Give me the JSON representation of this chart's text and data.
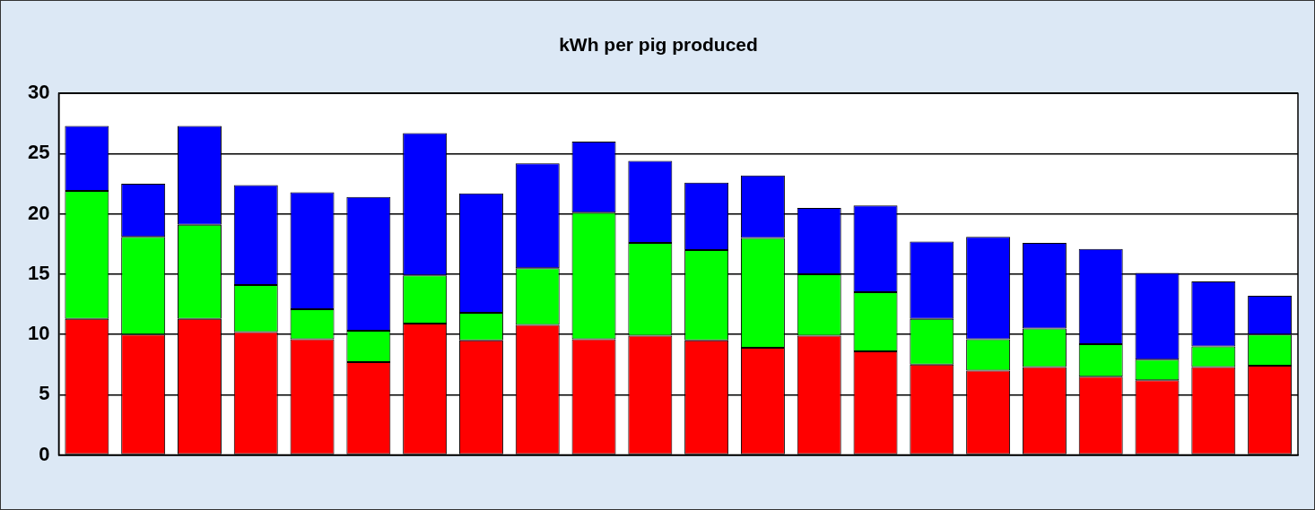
{
  "chart_data": {
    "type": "bar",
    "title": "kWh per pig produced",
    "stacked": true,
    "grid": "y",
    "categories": [
      null,
      null,
      null,
      null,
      null,
      null,
      null,
      null,
      null,
      null,
      null,
      null,
      null,
      null,
      null,
      null,
      null,
      null,
      null,
      null,
      null,
      null
    ],
    "series": [
      {
        "color": "#ff0000",
        "values": [
          11.3,
          10.0,
          11.3,
          10.2,
          9.6,
          7.7,
          10.9,
          9.5,
          10.8,
          9.6,
          9.9,
          9.5,
          8.9,
          9.9,
          8.6,
          7.5,
          7.0,
          7.3,
          6.5,
          6.2,
          7.3,
          7.4
        ]
      },
      {
        "color": "#00ff00",
        "values": [
          10.6,
          8.1,
          7.8,
          3.9,
          2.5,
          2.6,
          4.0,
          2.3,
          4.7,
          10.5,
          7.7,
          7.5,
          9.1,
          5.1,
          4.9,
          3.8,
          2.6,
          3.2,
          2.7,
          1.7,
          1.7,
          2.6
        ]
      },
      {
        "color": "#0000ff",
        "values": [
          5.4,
          4.4,
          8.2,
          8.3,
          9.7,
          11.1,
          11.8,
          9.9,
          8.7,
          5.9,
          6.8,
          5.6,
          5.2,
          5.5,
          7.2,
          6.4,
          8.5,
          7.1,
          7.9,
          7.2,
          5.4,
          3.2
        ]
      }
    ],
    "ylim": [
      0,
      30
    ],
    "yticks": [
      0,
      5,
      10,
      15,
      20,
      25,
      30
    ]
  }
}
